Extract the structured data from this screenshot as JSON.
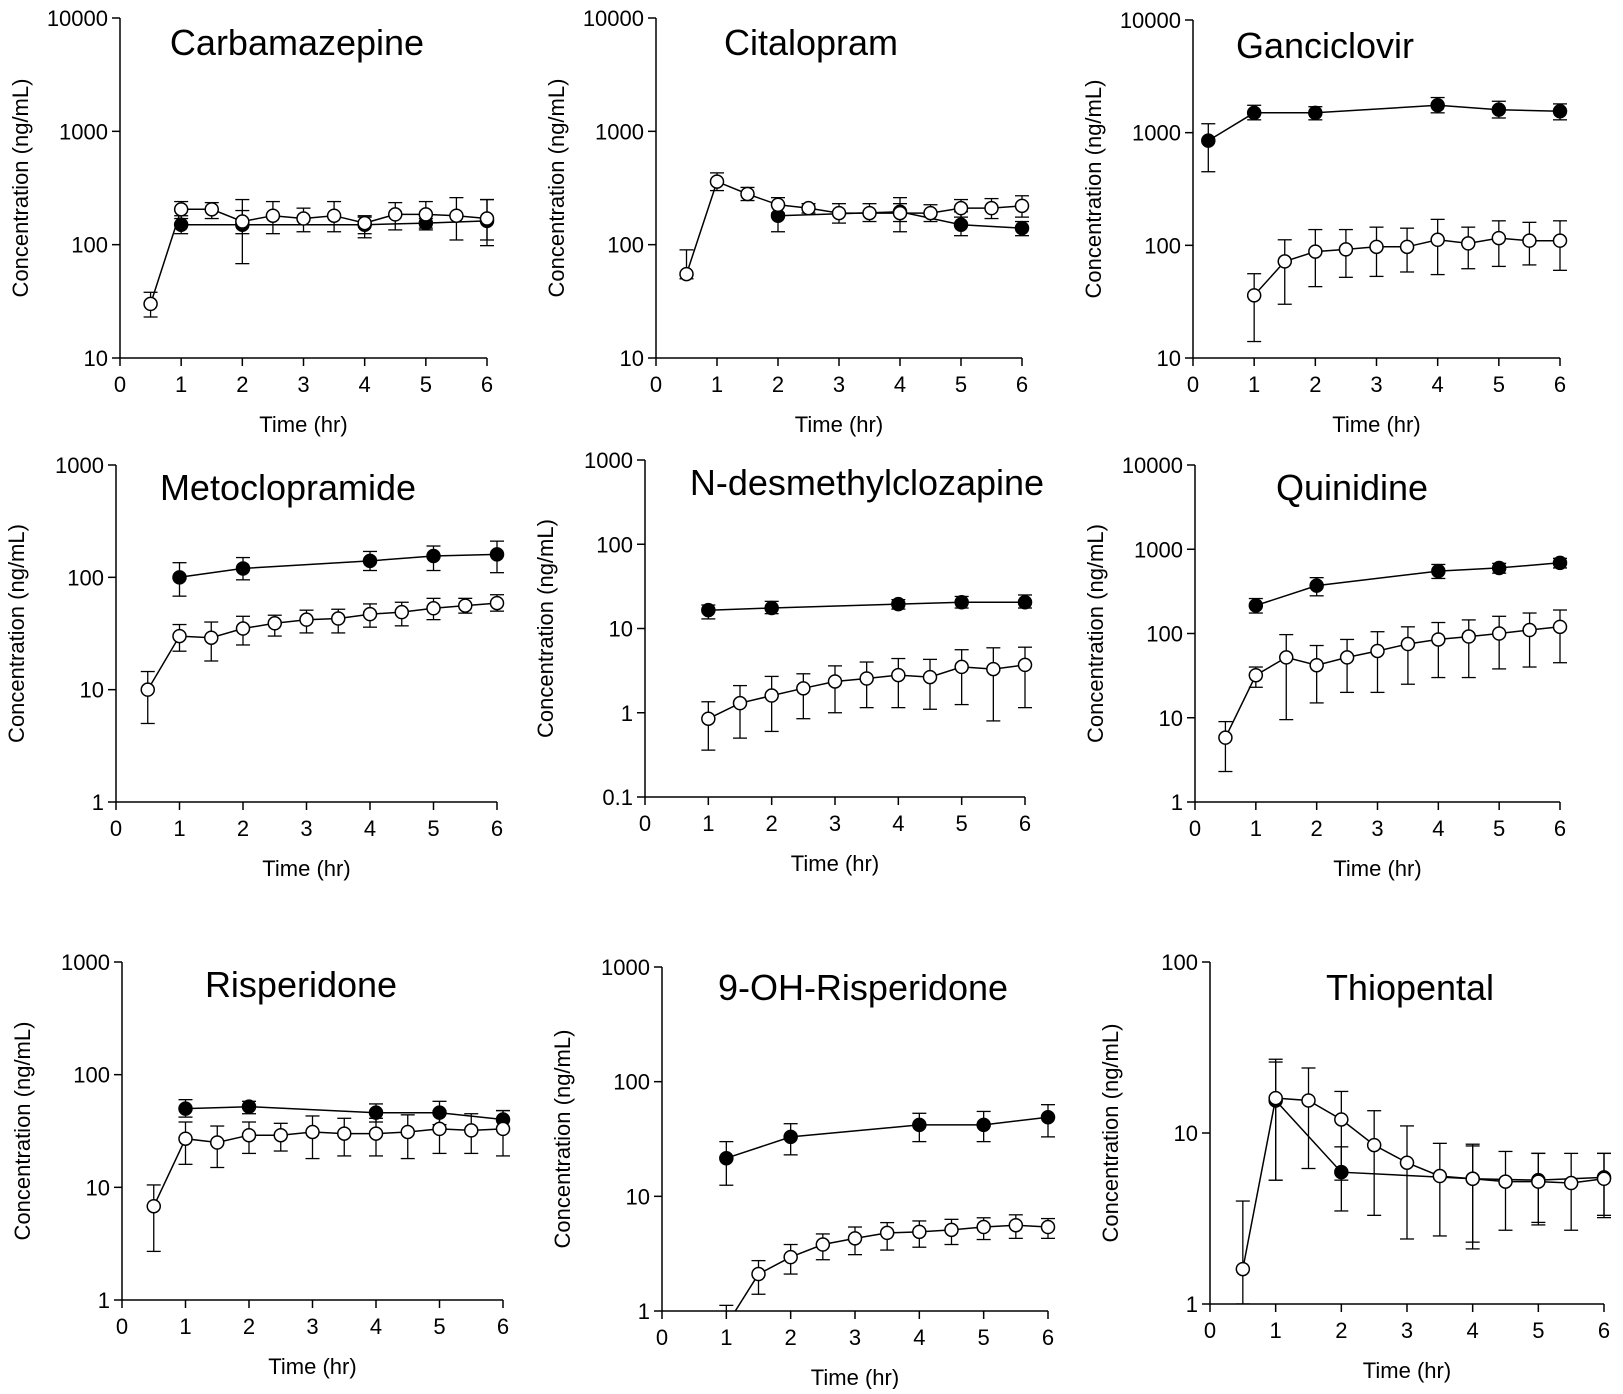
{
  "figure": {
    "background": "#ffffff",
    "marker_colors": {
      "closed": "#000000",
      "open": "#ffffff"
    }
  },
  "chart_data": [
    {
      "type": "line",
      "yscale": "log",
      "grid": false,
      "title": "Carbamazepine",
      "xlabel": "Time (hr)",
      "ylabel": "Concentration (ng/mL)",
      "xlim": [
        0,
        6
      ],
      "ylim": [
        10,
        10000
      ],
      "xticks": [
        0,
        1,
        2,
        3,
        4,
        5,
        6
      ],
      "yticks": [
        10,
        100,
        1000,
        10000
      ],
      "series": [
        {
          "marker": "closed",
          "x": [
            1,
            2,
            4,
            5,
            6
          ],
          "y": [
            150,
            150,
            150,
            155,
            162
          ],
          "err_hi": [
            180,
            250,
            175,
            170,
            250
          ],
          "err_lo": [
            125,
            68,
            115,
            140,
            98
          ]
        },
        {
          "marker": "open",
          "x": [
            0.5,
            1,
            1.5,
            2,
            2.5,
            3,
            3.5,
            4,
            4.5,
            5,
            5.5,
            6
          ],
          "y": [
            30,
            205,
            205,
            160,
            180,
            170,
            180,
            155,
            185,
            185,
            180,
            170
          ],
          "err_hi": [
            38,
            240,
            235,
            200,
            240,
            210,
            240,
            180,
            235,
            240,
            260,
            250
          ],
          "err_lo": [
            23,
            170,
            170,
            125,
            125,
            130,
            130,
            125,
            135,
            135,
            110,
            110
          ]
        }
      ]
    },
    {
      "type": "line",
      "yscale": "log",
      "grid": false,
      "title": "Citalopram",
      "xlabel": "Time (hr)",
      "ylabel": "Concentration (ng/mL)",
      "xlim": [
        0,
        6
      ],
      "ylim": [
        10,
        10000
      ],
      "xticks": [
        0,
        1,
        2,
        3,
        4,
        5,
        6
      ],
      "yticks": [
        10,
        100,
        1000,
        10000
      ],
      "series": [
        {
          "marker": "closed",
          "x": [
            2,
            4,
            5,
            6
          ],
          "y": [
            180,
            195,
            150,
            140
          ],
          "err_hi": [
            220,
            260,
            195,
            160
          ],
          "err_lo": [
            130,
            130,
            120,
            120
          ]
        },
        {
          "marker": "open",
          "x": [
            0.5,
            1,
            1.5,
            2,
            2.5,
            3,
            3.5,
            4,
            4.5,
            5,
            5.5,
            6
          ],
          "y": [
            55,
            360,
            280,
            225,
            210,
            190,
            190,
            190,
            190,
            210,
            210,
            220
          ],
          "err_hi": [
            90,
            430,
            320,
            260,
            230,
            230,
            230,
            230,
            225,
            250,
            255,
            270
          ],
          "err_lo": [
            50,
            300,
            245,
            190,
            190,
            155,
            160,
            160,
            160,
            175,
            170,
            175
          ]
        }
      ]
    },
    {
      "type": "line",
      "yscale": "log",
      "grid": false,
      "title": "Ganciclovir",
      "xlabel": "Time (hr)",
      "ylabel": "Concentration (ng/mL)",
      "xlim": [
        0,
        6
      ],
      "ylim": [
        10,
        10000
      ],
      "xticks": [
        0,
        1,
        2,
        3,
        4,
        5,
        6
      ],
      "yticks": [
        10,
        100,
        1000,
        10000
      ],
      "series": [
        {
          "marker": "closed",
          "x": [
            0.25,
            1,
            2,
            4,
            5,
            6
          ],
          "y": [
            850,
            1500,
            1500,
            1750,
            1600,
            1550
          ],
          "err_hi": [
            1200,
            1750,
            1700,
            2050,
            1900,
            1800
          ],
          "err_lo": [
            450,
            1300,
            1300,
            1500,
            1350,
            1300
          ]
        },
        {
          "marker": "open",
          "x": [
            1,
            1.5,
            2,
            2.5,
            3,
            3.5,
            4,
            4.5,
            5,
            5.5,
            6
          ],
          "y": [
            36,
            72,
            88,
            92,
            97,
            97,
            112,
            104,
            116,
            110,
            110
          ],
          "err_hi": [
            56,
            112,
            138,
            138,
            145,
            142,
            170,
            145,
            165,
            160,
            165
          ],
          "err_lo": [
            14,
            30,
            43,
            52,
            53,
            58,
            55,
            62,
            65,
            67,
            60
          ]
        }
      ]
    },
    {
      "type": "line",
      "yscale": "log",
      "grid": false,
      "title": "Metoclopramide",
      "xlabel": "Time (hr)",
      "ylabel": "Concentration (ng/mL)",
      "xlim": [
        0,
        6
      ],
      "ylim": [
        1,
        1000
      ],
      "xticks": [
        0,
        1,
        2,
        3,
        4,
        5,
        6
      ],
      "yticks": [
        1,
        10,
        100,
        1000
      ],
      "series": [
        {
          "marker": "closed",
          "x": [
            1,
            2,
            4,
            5,
            6
          ],
          "y": [
            100,
            120,
            140,
            155,
            160
          ],
          "err_hi": [
            135,
            150,
            170,
            190,
            210
          ],
          "err_lo": [
            68,
            95,
            115,
            115,
            110
          ]
        },
        {
          "marker": "open",
          "x": [
            0.5,
            1,
            1.5,
            2,
            2.5,
            3,
            3.5,
            4,
            4.5,
            5,
            5.5,
            6
          ],
          "y": [
            10,
            30,
            29,
            35,
            39,
            42,
            43,
            47,
            49,
            53,
            56,
            59
          ],
          "err_hi": [
            14.5,
            38,
            40,
            45,
            46,
            51,
            52,
            58,
            60,
            65,
            65,
            70
          ],
          "err_lo": [
            5,
            22,
            18,
            25,
            30,
            32,
            32,
            36,
            37,
            42,
            48,
            50
          ]
        }
      ]
    },
    {
      "type": "line",
      "yscale": "log",
      "grid": false,
      "title": "N-desmethylclozapine",
      "xlabel": "Time (hr)",
      "ylabel": "Concentration (ng/mL)",
      "xlim": [
        0,
        6
      ],
      "ylim": [
        0.1,
        1000
      ],
      "xticks": [
        0,
        1,
        2,
        3,
        4,
        5,
        6
      ],
      "yticks": [
        0.1,
        1,
        10,
        100,
        1000
      ],
      "series": [
        {
          "marker": "closed",
          "x": [
            1,
            2,
            4,
            5,
            6
          ],
          "y": [
            16.5,
            17.5,
            19.5,
            20.5,
            20.5
          ],
          "err_hi": [
            19,
            21,
            22,
            24,
            25
          ],
          "err_lo": [
            13,
            15,
            17,
            17.5,
            17.5
          ]
        },
        {
          "marker": "open",
          "x": [
            1,
            1.5,
            2,
            2.5,
            3,
            3.5,
            4,
            4.5,
            5,
            5.5,
            6
          ],
          "y": [
            0.85,
            1.3,
            1.6,
            1.95,
            2.35,
            2.55,
            2.8,
            2.65,
            3.5,
            3.3,
            3.7
          ],
          "err_hi": [
            1.35,
            2.1,
            2.7,
            2.9,
            3.6,
            4.0,
            4.4,
            4.3,
            5.6,
            5.9,
            6.0
          ],
          "err_lo": [
            0.36,
            0.5,
            0.6,
            0.85,
            1.0,
            1.15,
            1.15,
            1.1,
            1.25,
            0.8,
            1.15
          ]
        }
      ]
    },
    {
      "type": "line",
      "yscale": "log",
      "grid": false,
      "title": "Quinidine",
      "xlabel": "Time (hr)",
      "ylabel": "Concentration (ng/mL)",
      "xlim": [
        0,
        6
      ],
      "ylim": [
        1,
        10000
      ],
      "xticks": [
        0,
        1,
        2,
        3,
        4,
        5,
        6
      ],
      "yticks": [
        1,
        10,
        100,
        1000,
        10000
      ],
      "series": [
        {
          "marker": "closed",
          "x": [
            1,
            2,
            4,
            5,
            6
          ],
          "y": [
            215,
            370,
            550,
            600,
            690
          ],
          "err_hi": [
            260,
            460,
            660,
            680,
            780
          ],
          "err_lo": [
            175,
            280,
            450,
            520,
            600
          ]
        },
        {
          "marker": "open",
          "x": [
            0.5,
            1,
            1.5,
            2,
            2.5,
            3,
            3.5,
            4,
            4.5,
            5,
            5.5,
            6
          ],
          "y": [
            5.8,
            32,
            52,
            42,
            52,
            62,
            75,
            85,
            92,
            100,
            110,
            120
          ],
          "err_hi": [
            9,
            40,
            97,
            72,
            85,
            105,
            120,
            135,
            145,
            160,
            175,
            190
          ],
          "err_lo": [
            2.3,
            23,
            9.5,
            15,
            20,
            20,
            25,
            30,
            30,
            38,
            40,
            45
          ]
        }
      ]
    },
    {
      "type": "line",
      "yscale": "log",
      "grid": false,
      "title": "Risperidone",
      "xlabel": "Time (hr)",
      "ylabel": "Concentration (ng/mL)",
      "xlim": [
        0,
        6
      ],
      "ylim": [
        1,
        1000
      ],
      "xticks": [
        0,
        1,
        2,
        3,
        4,
        5,
        6
      ],
      "yticks": [
        1,
        10,
        100,
        1000
      ],
      "series": [
        {
          "marker": "closed",
          "x": [
            1,
            2,
            4,
            5,
            6
          ],
          "y": [
            50,
            52,
            46,
            46,
            40
          ],
          "err_hi": [
            60,
            58,
            55,
            58,
            48
          ],
          "err_lo": [
            42,
            45,
            38,
            36,
            34
          ]
        },
        {
          "marker": "open",
          "x": [
            0.5,
            1,
            1.5,
            2,
            2.5,
            3,
            3.5,
            4,
            4.5,
            5,
            5.5,
            6
          ],
          "y": [
            6.8,
            27,
            25,
            29,
            29,
            31,
            30,
            30,
            31,
            33,
            32,
            33
          ],
          "err_hi": [
            10.5,
            38,
            35,
            38,
            37,
            43,
            41,
            41,
            44,
            48,
            45,
            48
          ],
          "err_lo": [
            2.7,
            16,
            15,
            20,
            21,
            18,
            19,
            19,
            18,
            20,
            20,
            19
          ]
        }
      ]
    },
    {
      "type": "line",
      "yscale": "log",
      "grid": false,
      "title": "9-OH-Risperidone",
      "xlabel": "Time (hr)",
      "ylabel": "Concentration (ng/mL)",
      "xlim": [
        0,
        6
      ],
      "ylim": [
        1,
        1000
      ],
      "xticks": [
        0,
        1,
        2,
        3,
        4,
        5,
        6
      ],
      "yticks": [
        1,
        10,
        100,
        1000
      ],
      "series": [
        {
          "marker": "closed",
          "x": [
            1,
            2,
            4,
            5,
            6
          ],
          "y": [
            21.5,
            33,
            42,
            42,
            49
          ],
          "err_hi": [
            30,
            43,
            53,
            55,
            63
          ],
          "err_lo": [
            12.5,
            23,
            30,
            30,
            33
          ]
        },
        {
          "marker": "open",
          "x": [
            1,
            1.5,
            2,
            2.5,
            3,
            3.5,
            4,
            4.5,
            5,
            5.5,
            6
          ],
          "y": [
            0.75,
            2.1,
            2.95,
            3.8,
            4.3,
            4.8,
            4.9,
            5.1,
            5.4,
            5.6,
            5.4
          ],
          "err_hi": [
            1.12,
            2.75,
            3.8,
            4.7,
            5.4,
            5.9,
            6.1,
            6.3,
            6.5,
            6.9,
            6.4
          ],
          "err_lo": [
            0.6,
            1.4,
            2.1,
            2.8,
            3.1,
            3.4,
            3.6,
            3.8,
            4.2,
            4.3,
            4.3
          ]
        }
      ]
    },
    {
      "type": "line",
      "yscale": "log",
      "grid": false,
      "title": "Thiopental",
      "xlabel": "Time (hr)",
      "ylabel": "Concentration (ng/mL)",
      "xlim": [
        0,
        6
      ],
      "ylim": [
        1,
        100
      ],
      "xticks": [
        0,
        1,
        2,
        3,
        4,
        5,
        6
      ],
      "yticks": [
        1,
        10,
        100
      ],
      "series": [
        {
          "marker": "closed",
          "x": [
            1,
            2,
            4,
            5,
            6
          ],
          "y": [
            15.5,
            5.9,
            5.4,
            5.3,
            5.5
          ],
          "err_hi": [
            26,
            8.3,
            8.6,
            7.6,
            7.6
          ],
          "err_lo": [
            5.3,
            3.5,
            2.3,
            3.0,
            3.3
          ]
        },
        {
          "marker": "open",
          "x": [
            0.5,
            1,
            1.5,
            2,
            2.5,
            3,
            3.5,
            4,
            4.5,
            5,
            5.5,
            6
          ],
          "y": [
            1.6,
            16,
            15.5,
            12,
            8.5,
            6.7,
            5.6,
            5.4,
            5.2,
            5.2,
            5.1,
            5.4
          ],
          "err_hi": [
            4.0,
            27,
            24,
            17.5,
            13.5,
            11,
            8.7,
            8.4,
            7.8,
            7.6,
            7.6,
            7.6
          ],
          "err_lo": [
            1.0,
            5.3,
            6.2,
            5.3,
            3.3,
            2.4,
            2.5,
            2.1,
            2.7,
            2.9,
            2.7,
            3.2
          ]
        }
      ]
    }
  ]
}
